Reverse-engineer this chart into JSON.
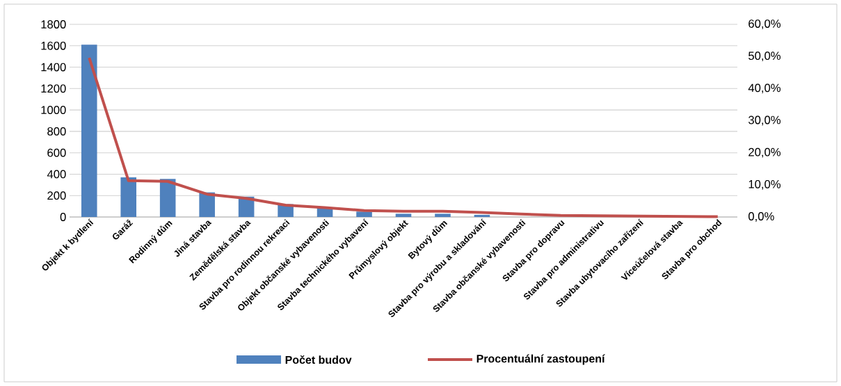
{
  "chart_data": {
    "type": "bar",
    "categories": [
      "Objekt k bydlení",
      "Garáž",
      "Rodinný dům",
      "Jiná stavba",
      "Zemědělská stavba",
      "Stavba pro rodinnou rekreaci",
      "Objekt občanské vybavenosti",
      "Stavba technického vybavení",
      "Průmyslový objekt",
      "Bytový dům",
      "Stavba pro výrobu a skladování",
      "Stavba občanské vybavenosti",
      "Stavba pro dopravu",
      "Stavba pro administrativu",
      "Stavba ubytovacího zařízení",
      "Víceúčelová stavba",
      "Stavba pro obchod"
    ],
    "series": [
      {
        "name": "Počet budov",
        "color": "#4f81bd",
        "values": [
          1610,
          370,
          355,
          230,
          190,
          120,
          85,
          50,
          30,
          30,
          20,
          null,
          null,
          null,
          null,
          null,
          null
        ]
      },
      {
        "name": "Procentuální zastoupení",
        "type": "line",
        "axis": "y2",
        "color": "#c0504d",
        "values": [
          49.6,
          11.3,
          11.1,
          7.1,
          5.8,
          3.7,
          2.9,
          2.0,
          1.8,
          1.8,
          1.4,
          0.9,
          0.5,
          0.4,
          0.3,
          0.2,
          0.1
        ]
      }
    ],
    "ylim": [
      0,
      1800
    ],
    "yticks": [
      0,
      200,
      400,
      600,
      800,
      1000,
      1200,
      1400,
      1600,
      1800
    ],
    "y2lim": [
      0,
      60
    ],
    "y2ticks": [
      {
        "value": 0,
        "label": "0,0%"
      },
      {
        "value": 10,
        "label": "10,0%"
      },
      {
        "value": 20,
        "label": "20,0%"
      },
      {
        "value": 30,
        "label": "30,0%"
      },
      {
        "value": 40,
        "label": "40,0%"
      },
      {
        "value": 50,
        "label": "50,0%"
      },
      {
        "value": 60,
        "label": "60,0%"
      }
    ],
    "grid": "y",
    "legend": "bottom"
  }
}
